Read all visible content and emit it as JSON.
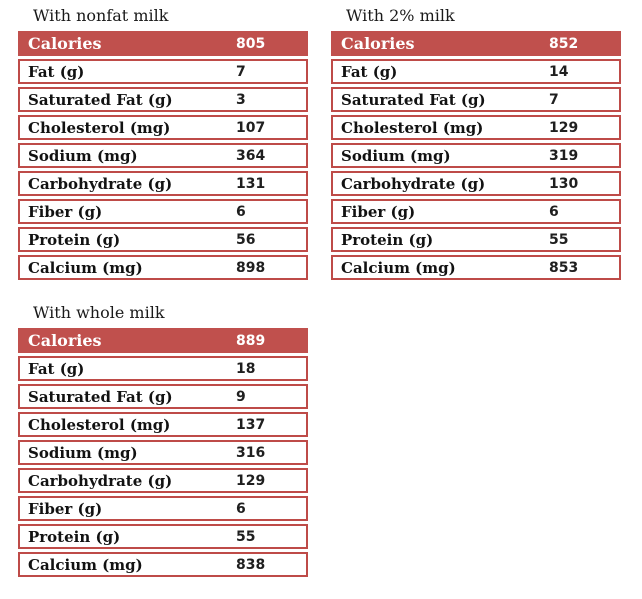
{
  "colors": {
    "background": "#FFFFFF",
    "accent_red": "#C0504D",
    "border_red": "#BE4B48",
    "header_text": "#FFFFFF",
    "title_text": "#1A1A1A",
    "label_text": "#121212",
    "value_text": "#1F1F1F"
  },
  "tables": [
    {
      "id": "nonfat",
      "title": "With nonfat milk",
      "rows": [
        {
          "label": "Calories",
          "value": "805",
          "header": true
        },
        {
          "label": "Fat (g)",
          "value": "7"
        },
        {
          "label": "Saturated Fat (g)",
          "value": "3"
        },
        {
          "label": "Cholesterol (mg)",
          "value": "107"
        },
        {
          "label": "Sodium (mg)",
          "value": "364"
        },
        {
          "label": "Carbohydrate (g)",
          "value": "131"
        },
        {
          "label": "Fiber (g)",
          "value": "6"
        },
        {
          "label": "Protein (g)",
          "value": "56"
        },
        {
          "label": "Calcium (mg)",
          "value": "898"
        }
      ]
    },
    {
      "id": "two-percent",
      "title": "With 2% milk",
      "rows": [
        {
          "label": "Calories",
          "value": "852",
          "header": true
        },
        {
          "label": "Fat (g)",
          "value": "14"
        },
        {
          "label": "Saturated Fat (g)",
          "value": "7"
        },
        {
          "label": "Cholesterol (mg)",
          "value": "129"
        },
        {
          "label": "Sodium (mg)",
          "value": "319"
        },
        {
          "label": "Carbohydrate (g)",
          "value": "130"
        },
        {
          "label": "Fiber (g)",
          "value": "6"
        },
        {
          "label": "Protein (g)",
          "value": "55"
        },
        {
          "label": "Calcium (mg)",
          "value": "853"
        }
      ]
    },
    {
      "id": "whole",
      "title": "With whole milk",
      "rows": [
        {
          "label": "Calories",
          "value": "889",
          "header": true
        },
        {
          "label": "Fat (g)",
          "value": "18"
        },
        {
          "label": "Saturated Fat (g)",
          "value": "9"
        },
        {
          "label": "Cholesterol (mg)",
          "value": "137"
        },
        {
          "label": "Sodium (mg)",
          "value": "316"
        },
        {
          "label": "Carbohydrate (g)",
          "value": "129"
        },
        {
          "label": "Fiber (g)",
          "value": "6"
        },
        {
          "label": "Protein (g)",
          "value": "55"
        },
        {
          "label": "Calcium (mg)",
          "value": "838"
        }
      ]
    }
  ]
}
